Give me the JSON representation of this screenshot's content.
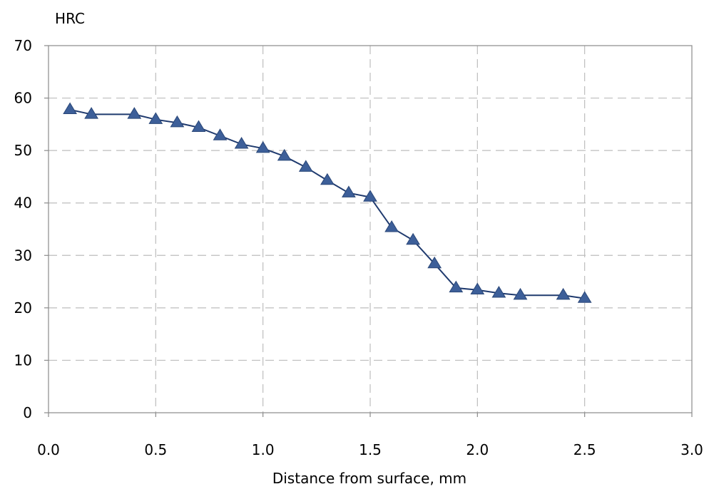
{
  "chart_data": {
    "type": "line",
    "title": "",
    "xlabel": "Distance from surface, mm",
    "ylabel": "HRC",
    "xlim": [
      0.0,
      3.0
    ],
    "ylim": [
      0,
      70
    ],
    "x_ticks": [
      "0.0",
      "0.5",
      "1.0",
      "1.5",
      "2.0",
      "2.5",
      "3.0"
    ],
    "y_ticks": [
      "0",
      "10",
      "20",
      "30",
      "40",
      "50",
      "60",
      "70"
    ],
    "grid": true,
    "marker": "triangle",
    "colors": {
      "line": "#1f3a6e",
      "marker": "#3d5f99",
      "grid": "#bdbdbd",
      "frame": "#8a8a8a"
    },
    "series": [
      {
        "x": [
          0.1,
          0.2,
          0.4,
          0.5,
          0.6,
          0.7,
          0.8,
          0.9,
          1.0,
          1.1,
          1.2,
          1.3,
          1.4,
          1.5,
          1.6,
          1.7,
          1.8,
          1.9,
          2.0,
          2.1,
          2.2,
          2.4,
          2.5
        ],
        "y": [
          57.8,
          56.9,
          56.9,
          55.9,
          55.3,
          54.4,
          52.8,
          51.2,
          50.4,
          48.9,
          46.8,
          44.3,
          41.9,
          41.1,
          35.3,
          32.9,
          28.4,
          23.8,
          23.4,
          22.8,
          22.4,
          22.4,
          21.8
        ]
      }
    ]
  }
}
